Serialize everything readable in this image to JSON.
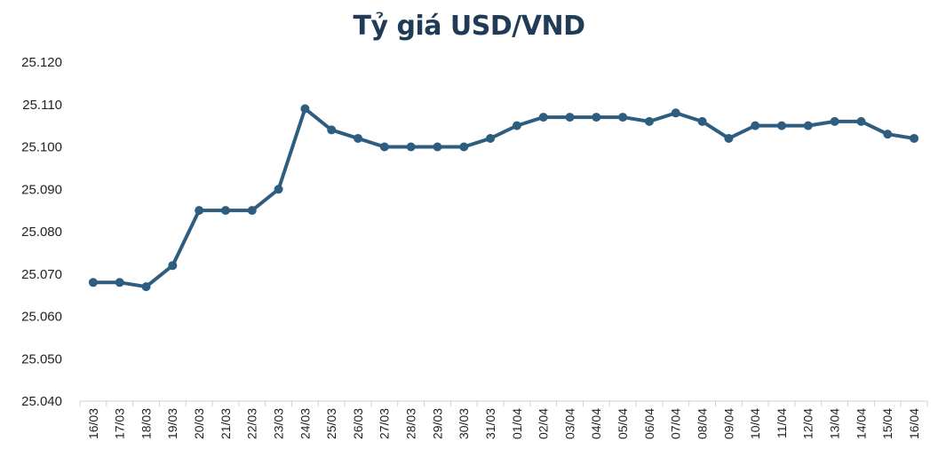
{
  "colors": {
    "title": "#1f3b57",
    "series": "#2e5d7f",
    "axis": "#d0d0d0",
    "tick_text": "#222222"
  },
  "chart_data": {
    "type": "line",
    "title": "Tỷ giá USD/VND",
    "xlabel": "",
    "ylabel": "",
    "ylim": [
      25040,
      25120
    ],
    "ytick_step": 10,
    "ytick_labels": [
      "25.040",
      "25.050",
      "25.060",
      "25.070",
      "25.080",
      "25.090",
      "25.100",
      "25.110",
      "25.120"
    ],
    "grid": false,
    "legend": "none",
    "categories": [
      "16/03",
      "17/03",
      "18/03",
      "19/03",
      "20/03",
      "21/03",
      "22/03",
      "23/03",
      "24/03",
      "25/03",
      "26/03",
      "27/03",
      "28/03",
      "29/03",
      "30/03",
      "31/03",
      "01/04",
      "02/04",
      "03/04",
      "04/04",
      "05/04",
      "06/04",
      "07/04",
      "08/04",
      "09/04",
      "10/04",
      "11/04",
      "12/04",
      "13/04",
      "14/04",
      "15/04",
      "16/04"
    ],
    "series": [
      {
        "values": [
          25068,
          25068,
          25067,
          25072,
          25085,
          25085,
          25085,
          25090,
          25109,
          25104,
          25102,
          25100,
          25100,
          25100,
          25100,
          25102,
          25105,
          25107,
          25107,
          25107,
          25107,
          25106,
          25108,
          25106,
          25102,
          25105,
          25105,
          25105,
          25106,
          25106,
          25103,
          25102
        ]
      }
    ]
  }
}
